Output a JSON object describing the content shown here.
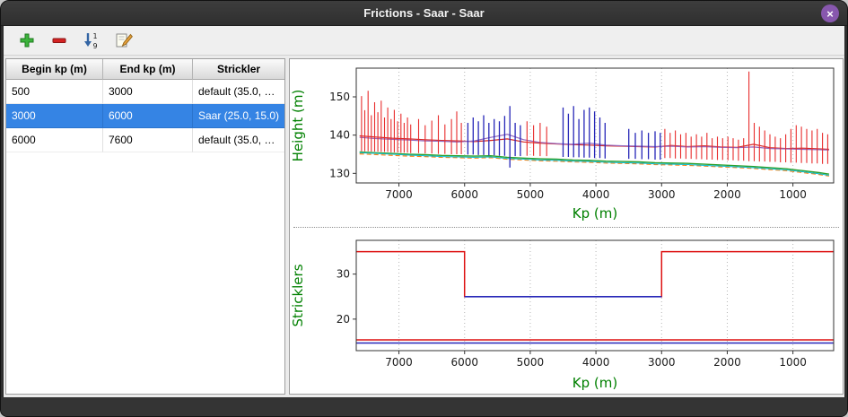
{
  "window": {
    "title": "Frictions - Saar - Saar",
    "close_glyph": "×"
  },
  "colors": {
    "selection_blue": "#3584e4",
    "close_button_purple": "#8757ad",
    "axis_label_green": "#008000"
  },
  "toolbar": {
    "buttons": [
      {
        "name": "add-button",
        "icon": "plus-icon"
      },
      {
        "name": "remove-button",
        "icon": "minus-icon"
      },
      {
        "name": "sort-button",
        "icon": "sort-numeric-down-icon"
      },
      {
        "name": "edit-button",
        "icon": "edit-pencil-icon"
      }
    ]
  },
  "table": {
    "columns": [
      "Begin kp (m)",
      "End kp (m)",
      "Strickler"
    ],
    "rows": [
      {
        "begin": "500",
        "end": "3000",
        "strickler": "default (35.0, …",
        "selected": false
      },
      {
        "begin": "3000",
        "end": "6000",
        "strickler": "Saar (25.0, 15.0)",
        "selected": true
      },
      {
        "begin": "6000",
        "end": "7600",
        "strickler": "default (35.0, …",
        "selected": false
      }
    ]
  },
  "chart_data": [
    {
      "type": "line",
      "title": "",
      "xlabel": "Kp (m)",
      "ylabel": "Height (m)",
      "xlim": [
        7650,
        380
      ],
      "ylim": [
        127.5,
        157.5
      ],
      "xticks": [
        7000,
        6000,
        5000,
        4000,
        3000,
        2000,
        1000
      ],
      "yticks": [
        130,
        140,
        150
      ],
      "axis_label_color": "#008000",
      "grid_color": "#b5b5b5",
      "x": [
        7600,
        7350,
        7100,
        6850,
        6600,
        6350,
        6100,
        5850,
        5600,
        5350,
        5100,
        4850,
        4600,
        4350,
        4100,
        3850,
        3600,
        3350,
        3100,
        2850,
        2600,
        2350,
        2100,
        1850,
        1600,
        1350,
        1100,
        850,
        600,
        450
      ],
      "series": [
        {
          "name": "water-level-red",
          "color": "#d62728",
          "width": 1.2,
          "y": [
            139.8,
            139.5,
            139.2,
            139.0,
            138.8,
            138.6,
            138.5,
            138.3,
            138.6,
            139.0,
            138.2,
            137.9,
            137.7,
            137.5,
            137.4,
            137.2,
            137.1,
            137.0,
            136.9,
            137.3,
            137.0,
            137.2,
            136.9,
            136.8,
            137.6,
            136.7,
            136.5,
            136.6,
            136.4,
            136.3
          ]
        },
        {
          "name": "level-purple",
          "color": "#9467bd",
          "width": 1.2,
          "y": [
            139.4,
            139.1,
            138.9,
            138.7,
            138.5,
            138.4,
            138.2,
            138.5,
            139.4,
            140.2,
            138.8,
            138.1,
            137.8,
            137.6,
            137.9,
            137.4,
            137.2,
            137.1,
            137.0,
            137.1,
            136.9,
            137.0,
            136.8,
            136.7,
            136.9,
            136.5,
            136.4,
            136.3,
            136.2,
            136.1
          ]
        },
        {
          "name": "bed-green",
          "color": "#2ca02c",
          "width": 1.4,
          "y": [
            135.6,
            135.4,
            135.2,
            135.0,
            134.9,
            134.7,
            134.6,
            134.5,
            134.6,
            134.2,
            134.0,
            133.8,
            133.7,
            133.5,
            133.4,
            133.2,
            133.1,
            133.0,
            132.8,
            132.7,
            132.6,
            132.4,
            132.2,
            132.0,
            131.8,
            131.5,
            131.2,
            130.7,
            130.2,
            129.8
          ]
        },
        {
          "name": "bed-orange-dashed",
          "color": "#ff7f0e",
          "width": 1.2,
          "dash": "5 3",
          "y": [
            135.1,
            134.9,
            134.7,
            134.5,
            134.4,
            134.2,
            134.1,
            134.0,
            134.1,
            133.7,
            133.5,
            133.3,
            133.2,
            133.0,
            132.9,
            132.7,
            132.6,
            132.5,
            132.3,
            132.2,
            132.1,
            131.9,
            131.7,
            131.5,
            131.3,
            131.0,
            130.7,
            130.2,
            129.7,
            129.3
          ]
        },
        {
          "name": "bed-cyan",
          "color": "#17becf",
          "width": 1.1,
          "y": [
            135.4,
            135.2,
            135.0,
            134.8,
            134.6,
            134.4,
            134.3,
            134.2,
            134.3,
            133.9,
            133.7,
            133.5,
            133.4,
            133.2,
            133.1,
            132.9,
            132.8,
            132.7,
            132.5,
            132.4,
            132.3,
            132.1,
            131.9,
            131.7,
            131.5,
            131.2,
            130.9,
            130.4,
            129.9,
            129.5
          ]
        }
      ],
      "spikes": [
        {
          "name": "cross-sections-red",
          "color": "#e82c2c",
          "width": 1.1,
          "lines": [
            [
              7570,
              135.8,
              150.2
            ],
            [
              7520,
              135.8,
              146.5
            ],
            [
              7470,
              135.8,
              151.6
            ],
            [
              7420,
              135.7,
              145.2
            ],
            [
              7370,
              135.7,
              148.6
            ],
            [
              7320,
              135.7,
              146.0
            ],
            [
              7270,
              135.6,
              149.0
            ],
            [
              7220,
              135.6,
              144.6
            ],
            [
              7170,
              135.6,
              147.2
            ],
            [
              7120,
              135.5,
              144.2
            ],
            [
              7070,
              135.5,
              146.6
            ],
            [
              7020,
              135.5,
              143.6
            ],
            [
              6970,
              135.4,
              145.6
            ],
            [
              6920,
              135.4,
              143.2
            ],
            [
              6870,
              135.4,
              144.6
            ],
            [
              6820,
              135.3,
              142.8
            ],
            [
              6700,
              135.3,
              144.2
            ],
            [
              6600,
              135.2,
              142.6
            ],
            [
              6500,
              135.2,
              143.8
            ],
            [
              6400,
              135.1,
              145.2
            ],
            [
              6300,
              135.1,
              142.8
            ],
            [
              6200,
              135.0,
              144.2
            ],
            [
              6120,
              135.0,
              146.2
            ],
            [
              6050,
              135.0,
              143.2
            ],
            [
              5050,
              134.6,
              143.6
            ],
            [
              4950,
              134.6,
              142.6
            ],
            [
              4850,
              134.5,
              143.2
            ],
            [
              4750,
              134.5,
              142.2
            ],
            [
              2950,
              134.0,
              141.6
            ],
            [
              2870,
              134.0,
              140.6
            ],
            [
              2790,
              133.9,
              141.2
            ],
            [
              2710,
              133.9,
              140.2
            ],
            [
              2630,
              133.8,
              140.6
            ],
            [
              2550,
              133.8,
              139.6
            ],
            [
              2470,
              133.7,
              140.2
            ],
            [
              2390,
              133.7,
              139.6
            ],
            [
              2310,
              133.6,
              140.6
            ],
            [
              2230,
              133.6,
              139.2
            ],
            [
              2150,
              133.5,
              139.6
            ],
            [
              2070,
              133.5,
              139.2
            ],
            [
              1990,
              133.4,
              139.6
            ],
            [
              1910,
              133.4,
              139.2
            ],
            [
              1830,
              133.3,
              138.8
            ],
            [
              1750,
              133.3,
              139.2
            ],
            [
              1670,
              133.2,
              156.6
            ],
            [
              1590,
              133.2,
              143.2
            ],
            [
              1510,
              133.1,
              142.2
            ],
            [
              1430,
              133.1,
              141.2
            ],
            [
              1350,
              133.0,
              140.2
            ],
            [
              1270,
              133.0,
              139.6
            ],
            [
              1190,
              132.9,
              139.2
            ],
            [
              1110,
              132.9,
              140.2
            ],
            [
              1030,
              132.8,
              141.6
            ],
            [
              950,
              132.8,
              142.6
            ],
            [
              870,
              132.7,
              142.2
            ],
            [
              790,
              132.7,
              141.6
            ],
            [
              710,
              132.6,
              141.2
            ],
            [
              630,
              132.6,
              141.6
            ],
            [
              550,
              132.5,
              140.6
            ],
            [
              470,
              132.5,
              140.2
            ]
          ]
        },
        {
          "name": "cross-sections-blue",
          "color": "#2727b8",
          "width": 1.3,
          "lines": [
            [
              5950,
              134.9,
              143.2
            ],
            [
              5870,
              134.9,
              144.6
            ],
            [
              5790,
              134.8,
              143.6
            ],
            [
              5710,
              134.8,
              145.2
            ],
            [
              5630,
              134.7,
              143.2
            ],
            [
              5550,
              134.7,
              144.2
            ],
            [
              5470,
              134.6,
              143.6
            ],
            [
              5390,
              134.6,
              145.0
            ],
            [
              5310,
              131.5,
              147.6
            ],
            [
              5230,
              134.5,
              143.2
            ],
            [
              5150,
              134.5,
              142.6
            ],
            [
              4500,
              134.3,
              147.2
            ],
            [
              4420,
              134.3,
              145.6
            ],
            [
              4340,
              134.2,
              147.6
            ],
            [
              4260,
              134.2,
              144.2
            ],
            [
              4180,
              134.1,
              146.6
            ],
            [
              4100,
              134.1,
              147.2
            ],
            [
              4020,
              134.0,
              146.2
            ],
            [
              3940,
              134.0,
              144.6
            ],
            [
              3860,
              133.9,
              143.2
            ],
            [
              3500,
              133.8,
              141.6
            ],
            [
              3400,
              133.8,
              140.6
            ],
            [
              3300,
              133.7,
              141.2
            ],
            [
              3200,
              133.7,
              140.6
            ],
            [
              3100,
              133.6,
              141.0
            ],
            [
              3020,
              133.6,
              140.6
            ]
          ]
        }
      ]
    },
    {
      "type": "step",
      "title": "",
      "xlabel": "Kp (m)",
      "ylabel": "Stricklers",
      "xlim": [
        7650,
        380
      ],
      "ylim": [
        13,
        37.5
      ],
      "xticks": [
        7000,
        6000,
        5000,
        4000,
        3000,
        2000,
        1000
      ],
      "yticks": [
        20,
        30
      ],
      "axis_label_color": "#008000",
      "grid_color": "#b5b5b5",
      "series": [
        {
          "name": "main-channel-strickler-default",
          "color": "#dd1111",
          "width": 1.5,
          "points": [
            [
              7650,
              35
            ],
            [
              6000,
              35
            ],
            [
              6000,
              25
            ],
            [
              3000,
              25
            ],
            [
              3000,
              35
            ],
            [
              380,
              35
            ]
          ]
        },
        {
          "name": "main-channel-strickler-saar",
          "color": "#2727b8",
          "width": 1.7,
          "points": [
            [
              6000,
              25
            ],
            [
              3000,
              25
            ]
          ]
        },
        {
          "name": "floodplain-strickler-red",
          "color": "#dd1111",
          "width": 1.4,
          "points": [
            [
              7650,
              15.4
            ],
            [
              380,
              15.4
            ]
          ]
        },
        {
          "name": "floodplain-strickler-blue",
          "color": "#2727b8",
          "width": 1.4,
          "points": [
            [
              7650,
              14.7
            ],
            [
              380,
              14.7
            ]
          ]
        }
      ]
    }
  ]
}
